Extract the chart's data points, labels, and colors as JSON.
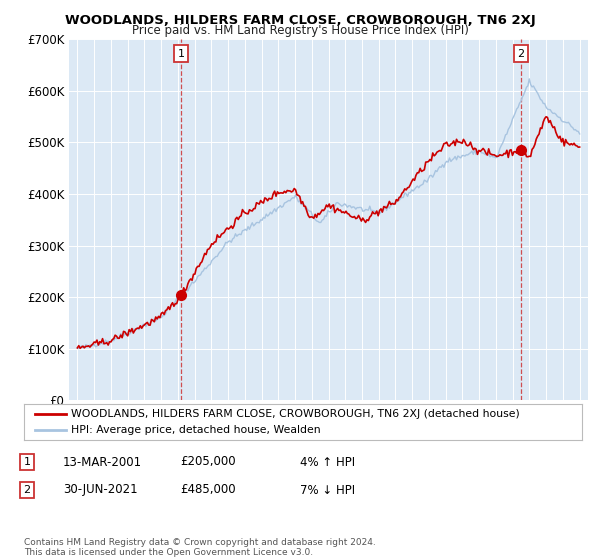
{
  "title": "WOODLANDS, HILDERS FARM CLOSE, CROWBOROUGH, TN6 2XJ",
  "subtitle": "Price paid vs. HM Land Registry's House Price Index (HPI)",
  "ylim": [
    0,
    700000
  ],
  "xlim": [
    1994.5,
    2025.5
  ],
  "yticks": [
    0,
    100000,
    200000,
    300000,
    400000,
    500000,
    600000,
    700000
  ],
  "ytick_labels": [
    "£0",
    "£100K",
    "£200K",
    "£300K",
    "£400K",
    "£500K",
    "£600K",
    "£700K"
  ],
  "xticks": [
    1995,
    1996,
    1997,
    1998,
    1999,
    2000,
    2001,
    2002,
    2003,
    2004,
    2005,
    2006,
    2007,
    2008,
    2009,
    2010,
    2011,
    2012,
    2013,
    2014,
    2015,
    2016,
    2017,
    2018,
    2019,
    2020,
    2021,
    2022,
    2023,
    2024,
    2025
  ],
  "plot_bg_color": "#dce9f5",
  "fig_bg_color": "#ffffff",
  "red_line_color": "#cc0000",
  "blue_line_color": "#a8c4e0",
  "marker_color": "#cc0000",
  "vline_color": "#cc3333",
  "sale1_x": 2001.2,
  "sale1_y": 205000,
  "sale2_x": 2021.5,
  "sale2_y": 485000,
  "legend1": "WOODLANDS, HILDERS FARM CLOSE, CROWBOROUGH, TN6 2XJ (detached house)",
  "legend2": "HPI: Average price, detached house, Wealden",
  "note1_date": "13-MAR-2001",
  "note1_price": "£205,000",
  "note1_hpi": "4% ↑ HPI",
  "note2_date": "30-JUN-2021",
  "note2_price": "£485,000",
  "note2_hpi": "7% ↓ HPI",
  "footer": "Contains HM Land Registry data © Crown copyright and database right 2024.\nThis data is licensed under the Open Government Licence v3.0."
}
